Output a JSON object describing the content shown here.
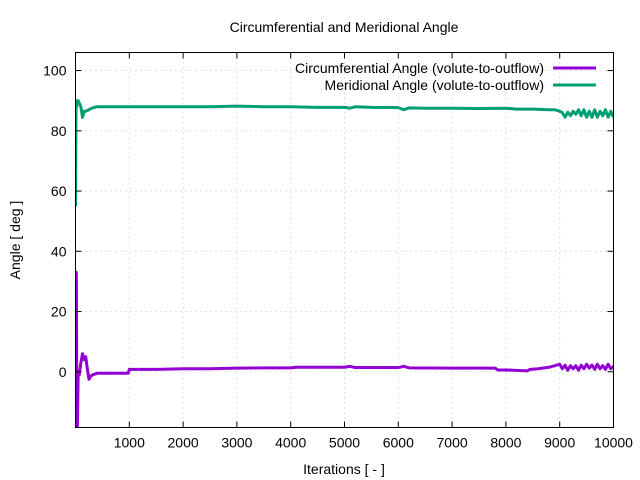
{
  "chart_data": {
    "type": "line",
    "title": "Circumferential and Meridional Angle",
    "xlabel": "Iterations [ - ]",
    "ylabel": "Angle [ deg ]",
    "xlim": [
      0,
      10000
    ],
    "ylim": [
      -18.5,
      106
    ],
    "xticks": [
      1000,
      2000,
      3000,
      4000,
      5000,
      6000,
      7000,
      8000,
      9000,
      10000
    ],
    "yticks": [
      0,
      20,
      40,
      60,
      80,
      100
    ],
    "grid": true,
    "legend_position": "top-right",
    "series": [
      {
        "name": "Circumferential Angle (volute-to-outflow)",
        "color": "#9400d3",
        "x": [
          0,
          15,
          25,
          35,
          50,
          70,
          100,
          130,
          160,
          190,
          220,
          250,
          280,
          320,
          400,
          500,
          700,
          900,
          980,
          1000,
          1500,
          2000,
          2500,
          3000,
          3500,
          4000,
          4100,
          4500,
          5000,
          5100,
          5200,
          5500,
          6000,
          6100,
          6200,
          7000,
          7800,
          7850,
          8000,
          8400,
          8450,
          8600,
          8800,
          9000,
          9050,
          9100,
          9150,
          9200,
          9250,
          9300,
          9350,
          9400,
          9450,
          9500,
          9550,
          9600,
          9650,
          9700,
          9750,
          9800,
          9850,
          9900,
          9950,
          10000
        ],
        "y": [
          -18,
          33,
          -10,
          -18,
          0,
          -1,
          3,
          6,
          4,
          5,
          1,
          -2.5,
          -1.5,
          -1,
          -0.5,
          -0.5,
          -0.5,
          -0.5,
          -0.5,
          0.8,
          0.8,
          1.0,
          1.0,
          1.2,
          1.3,
          1.3,
          1.5,
          1.5,
          1.5,
          1.8,
          1.4,
          1.4,
          1.4,
          1.8,
          1.3,
          1.2,
          1.2,
          0.6,
          0.6,
          0.3,
          0.8,
          1.0,
          1.5,
          2.5,
          1.0,
          2.2,
          0.5,
          2.0,
          1.0,
          2.0,
          0.5,
          2.2,
          1.0,
          2.5,
          1.2,
          2.2,
          0.8,
          2.5,
          1.0,
          2.0,
          0.8,
          2.5,
          1.0,
          1.8
        ]
      },
      {
        "name": "Meridional Angle (volute-to-outflow)",
        "color": "#009e73",
        "x": [
          0,
          10,
          20,
          30,
          50,
          100,
          130,
          160,
          190,
          250,
          300,
          400,
          500,
          1000,
          1500,
          2000,
          2500,
          3000,
          3500,
          4000,
          4500,
          5000,
          5100,
          5200,
          5500,
          6000,
          6100,
          6200,
          6500,
          7000,
          7500,
          8000,
          8200,
          8500,
          8800,
          8900,
          9000,
          9050,
          9100,
          9150,
          9200,
          9250,
          9300,
          9350,
          9400,
          9450,
          9500,
          9550,
          9600,
          9650,
          9700,
          9750,
          9800,
          9850,
          9900,
          9950,
          10000
        ],
        "y": [
          55,
          90,
          88,
          90,
          90,
          88,
          84.5,
          86.5,
          86.5,
          87,
          87.5,
          88,
          88,
          88,
          88,
          88,
          88,
          88.2,
          88,
          88,
          87.8,
          87.8,
          87.5,
          88,
          87.8,
          87.7,
          87,
          87.6,
          87.5,
          87.5,
          87.4,
          87.5,
          87.2,
          87.2,
          87,
          87,
          86.5,
          86,
          84.5,
          86.2,
          85,
          86.5,
          85.5,
          87,
          85,
          87,
          84.5,
          86.5,
          84.5,
          87,
          84.5,
          86.5,
          85,
          87,
          84.5,
          86.5,
          84.5
        ]
      }
    ]
  }
}
